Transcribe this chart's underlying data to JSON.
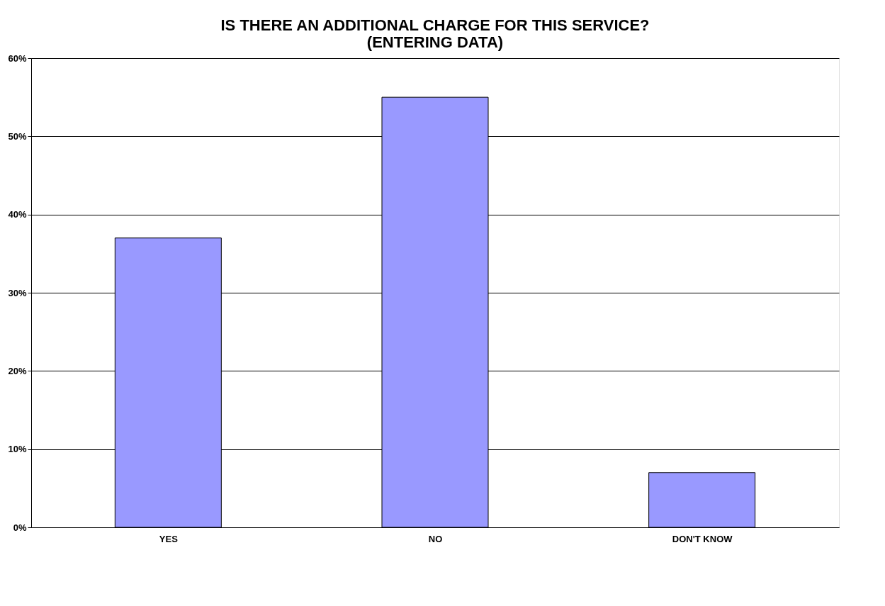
{
  "chart_data": {
    "type": "bar",
    "title": "IS THERE AN ADDITIONAL CHARGE FOR THIS SERVICE? \n(ENTERING DATA)",
    "categories": [
      "YES",
      "NO",
      "DON'T KNOW"
    ],
    "values": [
      37,
      55,
      7
    ],
    "color": "#9999ff",
    "ylim": [
      0,
      60
    ],
    "yticks": [
      {
        "value": 0,
        "label": "0%"
      },
      {
        "value": 10,
        "label": "10%"
      },
      {
        "value": 20,
        "label": "20%"
      },
      {
        "value": 30,
        "label": "30%"
      },
      {
        "value": 40,
        "label": "40%"
      },
      {
        "value": 50,
        "label": "50%"
      },
      {
        "value": 60,
        "label": "60%"
      }
    ],
    "grid": "y"
  }
}
